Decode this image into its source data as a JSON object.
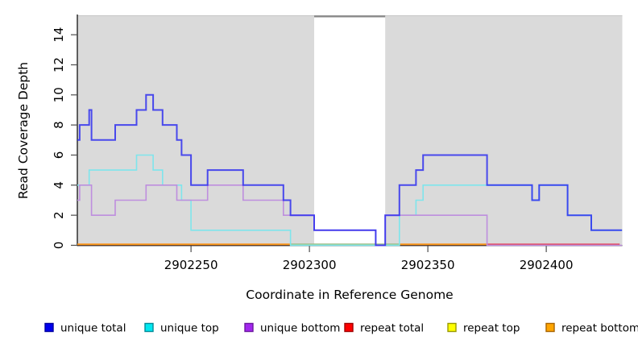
{
  "chart_data": {
    "type": "line",
    "subtype": "step-coverage",
    "title": "",
    "xlabel": "Coordinate in Reference Genome",
    "ylabel": "Read Coverage Depth",
    "xlim": [
      2902202,
      2902432
    ],
    "ylim": [
      0,
      15
    ],
    "x_ticks": [
      2902250,
      2902300,
      2902350,
      2902400
    ],
    "y_ticks": [
      0,
      2,
      4,
      6,
      8,
      10,
      12,
      14
    ],
    "grid": false,
    "legend_position": "bottom",
    "plot_background": "#dadada",
    "gap_region": {
      "from": 2902302,
      "to": 2902332
    },
    "gap_cap_color": "#8a8a8a",
    "band_edge_color": "#c6c6c6",
    "series": [
      {
        "name": "unique total",
        "line_color": "#2a2aef",
        "points": [
          [
            2902202,
            7
          ],
          [
            2902203,
            8
          ],
          [
            2902207,
            9
          ],
          [
            2902208,
            7
          ],
          [
            2902218,
            8
          ],
          [
            2902227,
            9
          ],
          [
            2902231,
            10
          ],
          [
            2902234,
            9
          ],
          [
            2902238,
            8
          ],
          [
            2902244,
            7
          ],
          [
            2902246,
            6
          ],
          [
            2902250,
            4
          ],
          [
            2902257,
            5
          ],
          [
            2902272,
            4
          ],
          [
            2902289,
            3
          ],
          [
            2902292,
            2
          ],
          [
            2902302,
            1
          ],
          [
            2902328,
            0
          ],
          [
            2902332,
            2
          ],
          [
            2902338,
            4
          ],
          [
            2902345,
            5
          ],
          [
            2902348,
            6
          ],
          [
            2902375,
            4
          ],
          [
            2902394,
            3
          ],
          [
            2902397,
            4
          ],
          [
            2902409,
            2
          ],
          [
            2902419,
            1
          ],
          [
            2902432,
            1
          ]
        ]
      },
      {
        "name": "unique top",
        "line_color": "#7ee5ec",
        "points": [
          [
            2902202,
            4
          ],
          [
            2902207,
            5
          ],
          [
            2902227,
            6
          ],
          [
            2902234,
            5
          ],
          [
            2902238,
            4
          ],
          [
            2902246,
            3
          ],
          [
            2902250,
            1
          ],
          [
            2902292,
            0
          ],
          [
            2902338,
            2
          ],
          [
            2902345,
            3
          ],
          [
            2902348,
            4
          ],
          [
            2902394,
            3
          ],
          [
            2902397,
            4
          ],
          [
            2902409,
            2
          ],
          [
            2902419,
            1
          ],
          [
            2902432,
            1
          ]
        ]
      },
      {
        "name": "unique bottom",
        "line_color": "#be8ede",
        "points": [
          [
            2902202,
            3
          ],
          [
            2902203,
            4
          ],
          [
            2902208,
            2
          ],
          [
            2902218,
            3
          ],
          [
            2902231,
            4
          ],
          [
            2902244,
            3
          ],
          [
            2902257,
            4
          ],
          [
            2902272,
            3
          ],
          [
            2902289,
            2
          ],
          [
            2902302,
            1
          ],
          [
            2902328,
            0
          ],
          [
            2902332,
            2
          ],
          [
            2902375,
            0
          ],
          [
            2902432,
            0
          ]
        ]
      },
      {
        "name": "repeat total",
        "line_color": "#e2475e",
        "points": [
          [
            2902202,
            0
          ],
          [
            2902432,
            0
          ]
        ]
      },
      {
        "name": "repeat top",
        "line_color": "#ffff00",
        "points": [
          [
            2902202,
            0
          ],
          [
            2902375,
            0
          ]
        ]
      },
      {
        "name": "repeat bottom",
        "line_color": "#ff9e1b",
        "points": [
          [
            2902202,
            0
          ],
          [
            2902375,
            0
          ]
        ]
      }
    ],
    "baseline_segments": [
      {
        "name": "repeat-total-visible",
        "color": "#e2475e",
        "from": 2902202,
        "to": 2902431
      },
      {
        "name": "repeat-top-over-unique-top",
        "color": "#9acb90",
        "from": 2902292,
        "to": 2902338
      },
      {
        "name": "repeat-bottom-left",
        "color": "#ff9e1b",
        "from": 2902202,
        "to": 2902292
      },
      {
        "name": "repeat-bottom-right",
        "color": "#ff9e1b",
        "from": 2902338,
        "to": 2902375
      }
    ]
  },
  "legend": {
    "items": [
      {
        "label": "unique total",
        "fill": "#0000ee",
        "border": "#0000a0"
      },
      {
        "label": "unique top",
        "fill": "#00e8f0",
        "border": "#008b99"
      },
      {
        "label": "unique bottom",
        "fill": "#a226ee",
        "border": "#6b189e"
      },
      {
        "label": "repeat total",
        "fill": "#ff0000",
        "border": "#a00000"
      },
      {
        "label": "repeat top",
        "fill": "#ffff00",
        "border": "#9a9a00"
      },
      {
        "label": "repeat bottom",
        "fill": "#ffa500",
        "border": "#a86400"
      }
    ]
  }
}
